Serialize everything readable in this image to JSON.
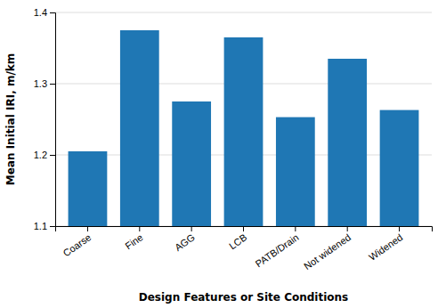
{
  "chart_data": {
    "type": "bar",
    "categories": [
      "Coarse",
      "Fine",
      "AGG",
      "LCB",
      "PATB/Drain",
      "Not widened",
      "Widened"
    ],
    "values": [
      1.205,
      1.375,
      1.275,
      1.365,
      1.253,
      1.335,
      1.263
    ],
    "xlabel": "Design Features or Site Conditions",
    "ylabel": "Mean Initial IRI, m/km",
    "ylim": [
      1.1,
      1.4
    ],
    "yticks": [
      1.1,
      1.2,
      1.3,
      1.4
    ],
    "grid": true
  }
}
